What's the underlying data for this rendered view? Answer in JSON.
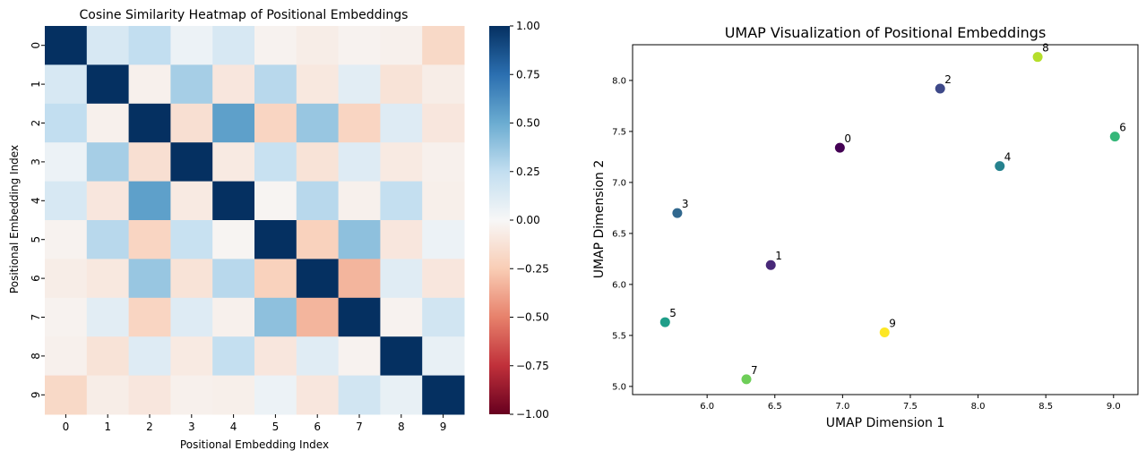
{
  "chart_data": [
    {
      "type": "heatmap",
      "title": "Cosine Similarity Heatmap of Positional Embeddings",
      "xlabel": "Positional Embedding Index",
      "ylabel": "Positional Embedding Index",
      "x_categories": [
        "0",
        "1",
        "2",
        "3",
        "4",
        "5",
        "6",
        "7",
        "8",
        "9"
      ],
      "y_categories": [
        "0",
        "1",
        "2",
        "3",
        "4",
        "5",
        "6",
        "7",
        "8",
        "9"
      ],
      "colormap": "RdBu",
      "vmin": -1.0,
      "vmax": 1.0,
      "colorbar_ticks": [
        "1.00",
        "0.75",
        "0.50",
        "0.25",
        "0.00",
        "−0.25",
        "−0.50",
        "−0.75",
        "−1.00"
      ],
      "colorbar_tick_values": [
        1.0,
        0.75,
        0.5,
        0.25,
        0.0,
        -0.25,
        -0.5,
        -0.75,
        -1.0
      ],
      "values": [
        [
          1.0,
          0.15,
          0.25,
          0.05,
          0.15,
          -0.03,
          -0.06,
          -0.03,
          -0.04,
          -0.18
        ],
        [
          0.15,
          1.0,
          -0.04,
          0.33,
          -0.1,
          0.28,
          -0.09,
          0.1,
          -0.12,
          -0.06
        ],
        [
          0.25,
          -0.04,
          1.0,
          -0.14,
          0.55,
          -0.2,
          0.37,
          -0.2,
          0.12,
          -0.1
        ],
        [
          0.05,
          0.33,
          -0.14,
          1.0,
          -0.08,
          0.22,
          -0.12,
          0.12,
          -0.08,
          -0.04
        ],
        [
          0.15,
          -0.1,
          0.55,
          -0.08,
          1.0,
          -0.02,
          0.28,
          -0.04,
          0.24,
          -0.05
        ],
        [
          -0.03,
          0.28,
          -0.2,
          0.22,
          -0.02,
          1.0,
          -0.22,
          0.4,
          -0.1,
          0.05
        ],
        [
          -0.06,
          -0.09,
          0.37,
          -0.12,
          0.28,
          -0.22,
          1.0,
          -0.33,
          0.11,
          -0.1
        ],
        [
          -0.03,
          0.1,
          -0.2,
          0.12,
          -0.04,
          0.4,
          -0.33,
          1.0,
          -0.03,
          0.18
        ],
        [
          -0.04,
          -0.12,
          0.12,
          -0.08,
          0.24,
          -0.1,
          0.11,
          -0.03,
          1.0,
          0.07
        ],
        [
          -0.18,
          -0.06,
          -0.1,
          -0.04,
          -0.05,
          0.05,
          -0.1,
          0.18,
          0.07,
          1.0
        ]
      ]
    },
    {
      "type": "scatter",
      "title": "UMAP Visualization of Positional Embeddings",
      "xlabel": "UMAP Dimension 1",
      "ylabel": "UMAP Dimension 2",
      "xlim": [
        5.45,
        9.18
      ],
      "ylim": [
        4.92,
        8.35
      ],
      "xticks": [
        6.0,
        6.5,
        7.0,
        7.5,
        8.0,
        8.5,
        9.0
      ],
      "xtick_labels": [
        "6.0",
        "6.5",
        "7.0",
        "7.5",
        "8.0",
        "8.5",
        "9.0"
      ],
      "yticks": [
        5.0,
        5.5,
        6.0,
        6.5,
        7.0,
        7.5,
        8.0
      ],
      "ytick_labels": [
        "5.0",
        "5.5",
        "6.0",
        "6.5",
        "7.0",
        "7.5",
        "8.0"
      ],
      "colormap": "viridis",
      "points": [
        {
          "label": "0",
          "x": 6.98,
          "y": 7.34,
          "color": "#440154"
        },
        {
          "label": "1",
          "x": 6.47,
          "y": 6.19,
          "color": "#482878"
        },
        {
          "label": "2",
          "x": 7.72,
          "y": 7.92,
          "color": "#3e4989"
        },
        {
          "label": "3",
          "x": 5.78,
          "y": 6.7,
          "color": "#31688e"
        },
        {
          "label": "4",
          "x": 8.16,
          "y": 7.16,
          "color": "#26828e"
        },
        {
          "label": "5",
          "x": 5.69,
          "y": 5.63,
          "color": "#1f9e89"
        },
        {
          "label": "6",
          "x": 9.01,
          "y": 7.45,
          "color": "#35b779"
        },
        {
          "label": "7",
          "x": 6.29,
          "y": 5.07,
          "color": "#6ece58"
        },
        {
          "label": "8",
          "x": 8.44,
          "y": 8.23,
          "color": "#b5de2b"
        },
        {
          "label": "9",
          "x": 7.31,
          "y": 5.53,
          "color": "#fde725"
        }
      ]
    }
  ]
}
